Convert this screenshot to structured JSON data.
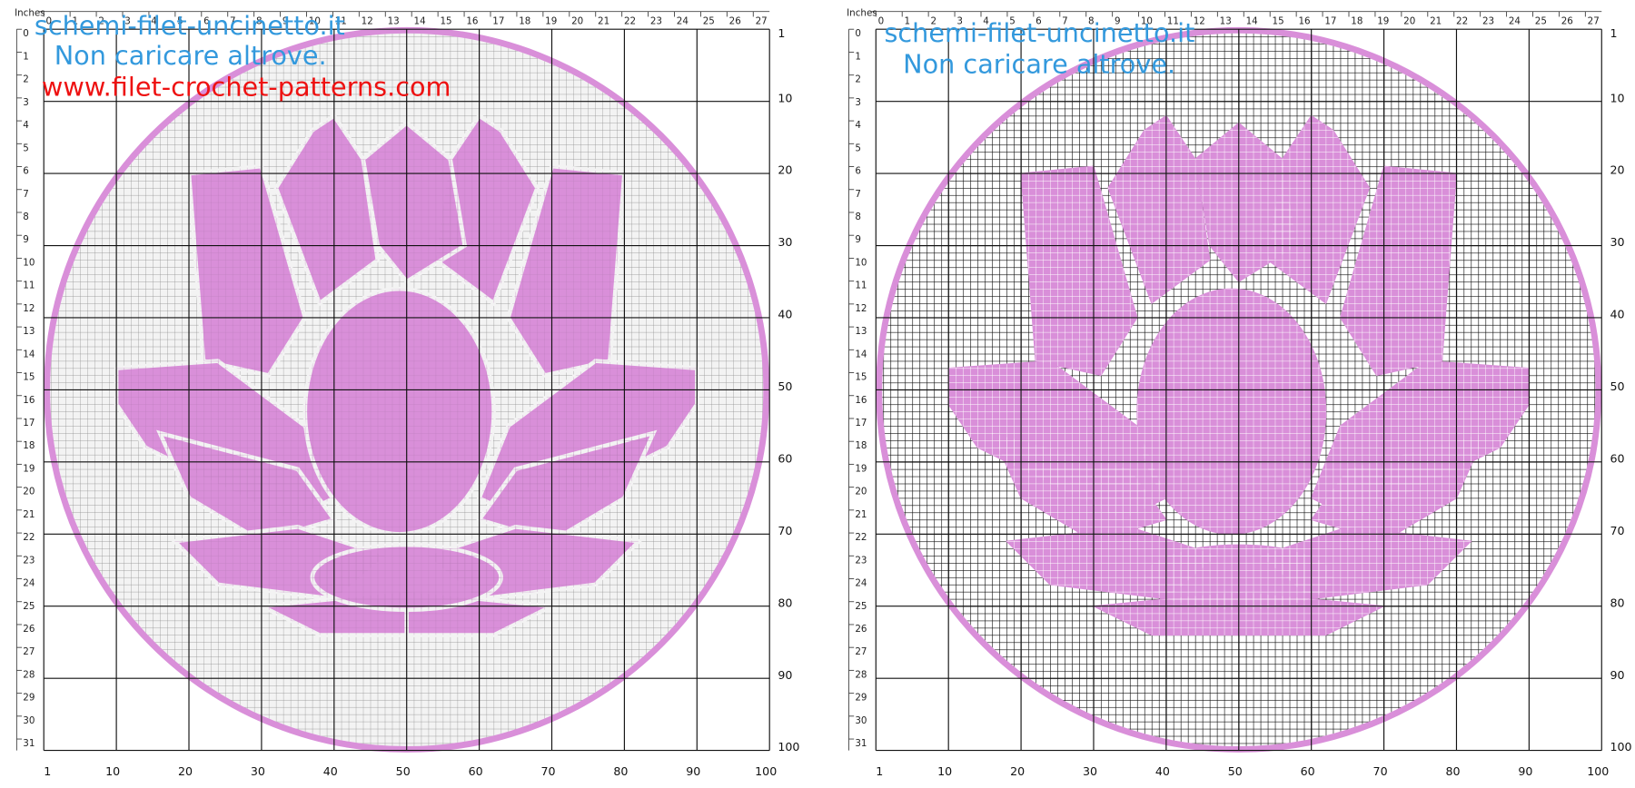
{
  "panels": [
    {
      "units": "Inches",
      "inch_ticks": [
        0,
        1,
        2,
        3,
        4,
        5,
        6,
        7,
        8,
        9,
        10,
        11,
        12,
        13,
        14,
        15,
        16,
        17,
        18,
        19,
        20,
        21,
        22,
        23,
        24,
        25,
        26,
        27
      ],
      "row_inches": [
        0,
        1,
        2,
        3,
        4,
        5,
        6,
        7,
        8,
        9,
        10,
        11,
        12,
        13,
        14,
        15,
        16,
        17,
        18,
        19,
        20,
        21,
        22,
        23,
        24,
        25,
        26,
        27,
        28,
        29,
        30,
        31
      ],
      "row_labels": [
        1,
        10,
        20,
        30,
        40,
        50,
        60,
        70,
        80,
        90,
        100
      ],
      "column_labels": [
        1,
        10,
        20,
        30,
        40,
        50,
        60,
        70,
        80,
        90,
        100
      ],
      "watermark": [
        "schemi-filet-uncinetto.it",
        "Non caricare altrove.",
        "www.filet-crochet-patterns.com"
      ]
    },
    {
      "units": "Inches",
      "inch_ticks": [
        0,
        1,
        2,
        3,
        4,
        5,
        6,
        7,
        8,
        9,
        10,
        11,
        12,
        13,
        14,
        15,
        16,
        17,
        18,
        19,
        20,
        21,
        22,
        23,
        24,
        25,
        26,
        27
      ],
      "row_inches": [
        0,
        1,
        2,
        3,
        4,
        5,
        6,
        7,
        8,
        9,
        10,
        11,
        12,
        13,
        14,
        15,
        16,
        17,
        18,
        19,
        20,
        21,
        22,
        23,
        24,
        25,
        26,
        27,
        28,
        29,
        30,
        31
      ],
      "row_labels": [
        1,
        10,
        20,
        30,
        40,
        50,
        60,
        70,
        80,
        90,
        100
      ],
      "column_labels": [
        1,
        10,
        20,
        30,
        40,
        50,
        60,
        70,
        80,
        90,
        100
      ],
      "watermark": [
        "schemi-filet-uncinetto.it",
        "Non caricare altrove."
      ]
    }
  ]
}
